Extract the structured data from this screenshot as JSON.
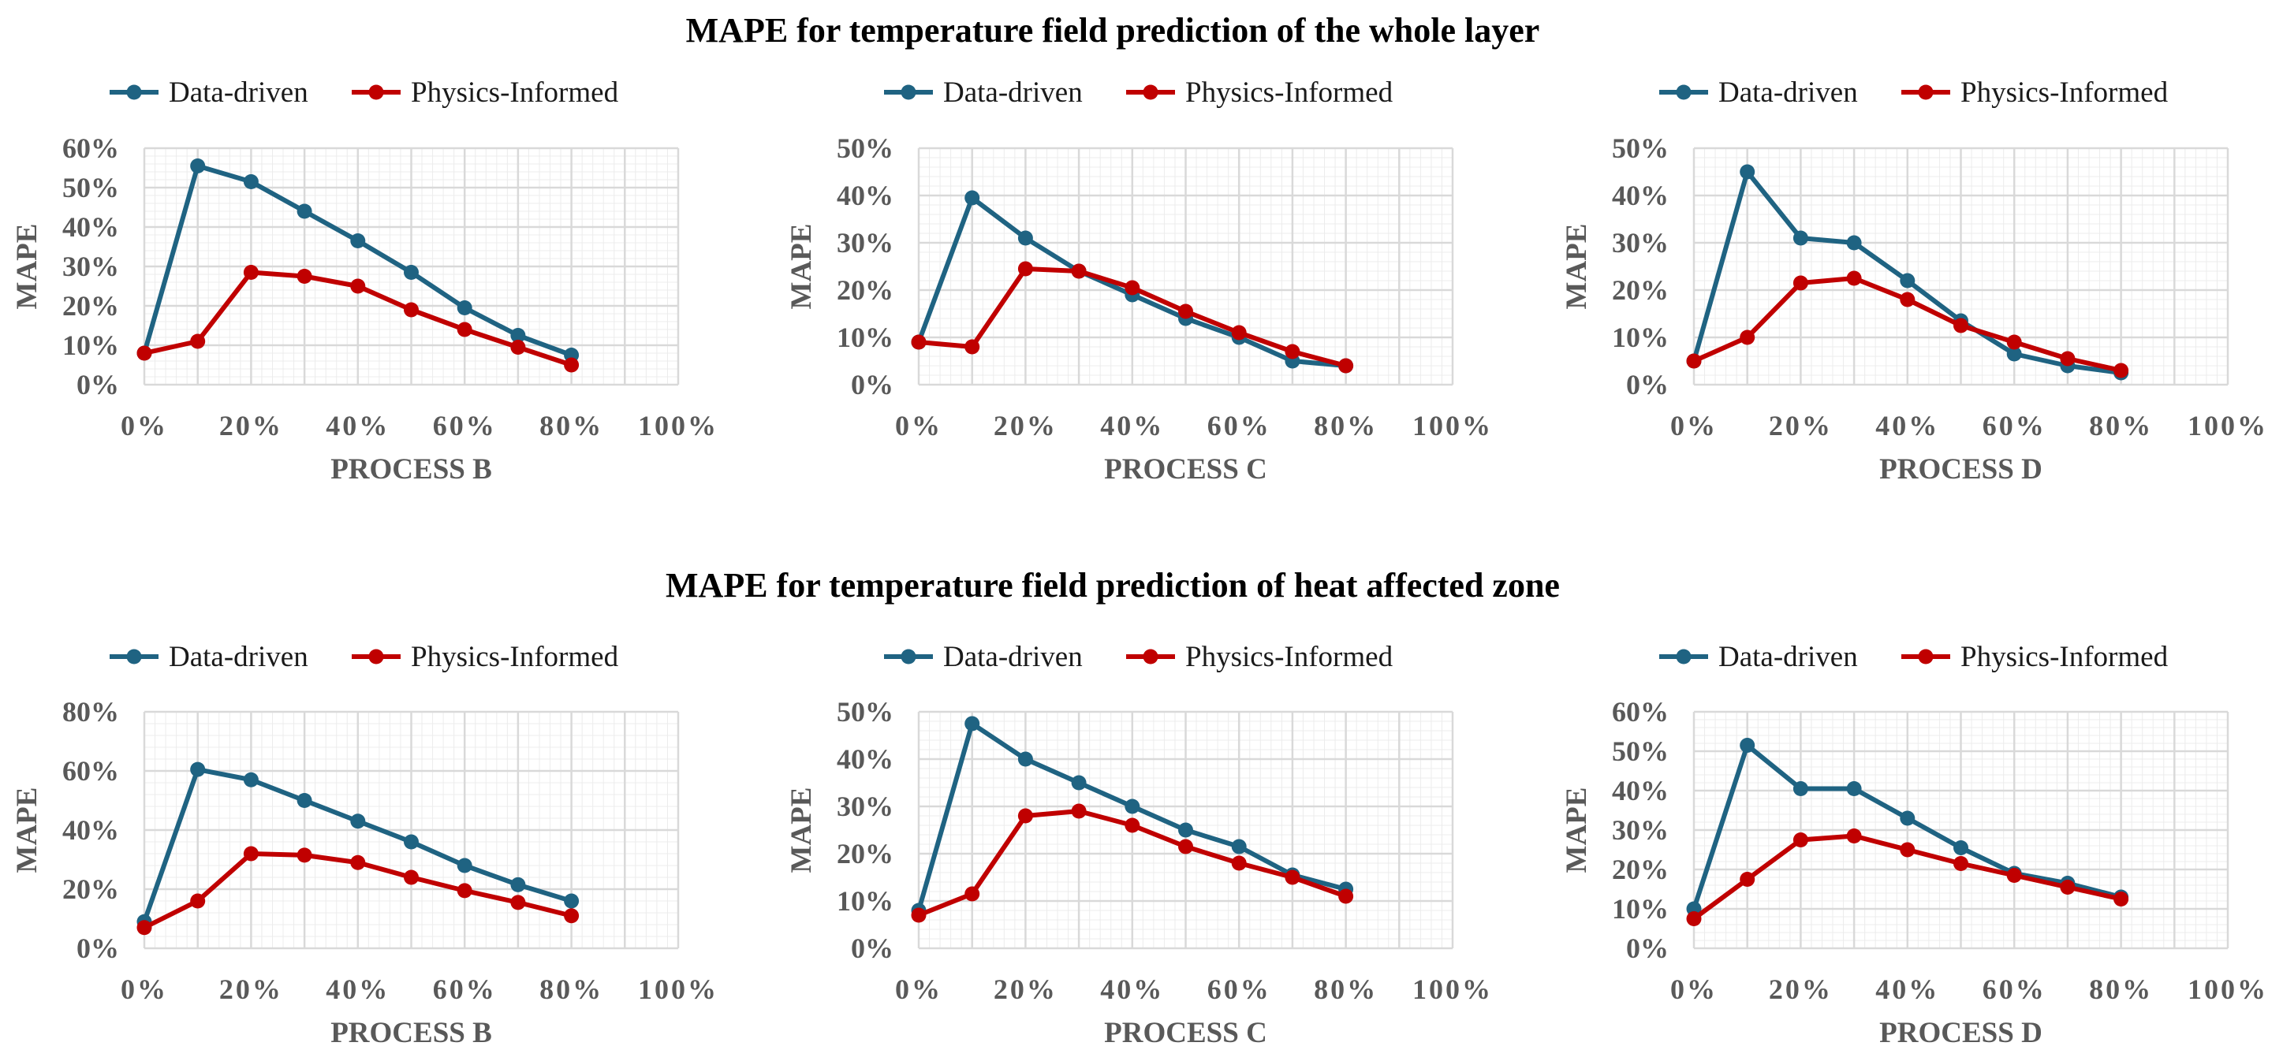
{
  "section_titles": [
    "MAPE for temperature field prediction of the whole layer",
    "MAPE for temperature field prediction of heat affected zone"
  ],
  "colors": {
    "data_driven": "#1f6382",
    "physics_informed": "#c00000",
    "grid_major": "#d9d9d9",
    "grid_minor": "#ececec",
    "tick_text": "#595959"
  },
  "chart_data": [
    {
      "type": "line",
      "section": 0,
      "xlabel": "PROCESS B",
      "ylabel": "MAPE",
      "xlim": [
        0,
        100
      ],
      "ylim": [
        0,
        60
      ],
      "ystep": 10,
      "x_ticks": [
        "0%",
        "20%",
        "40%",
        "60%",
        "80%",
        "100%"
      ],
      "y_ticks": [
        "0%",
        "10%",
        "20%",
        "30%",
        "40%",
        "50%",
        "60%"
      ],
      "x": [
        0,
        10,
        20,
        30,
        40,
        50,
        60,
        70,
        80
      ],
      "series": [
        {
          "name": "Data-driven",
          "values": [
            8,
            55.5,
            51.5,
            44,
            36.5,
            28.5,
            19.5,
            12.5,
            7.5
          ]
        },
        {
          "name": "Physics-Informed",
          "values": [
            8,
            11,
            28.5,
            27.5,
            25,
            19,
            14,
            9.5,
            5
          ]
        }
      ]
    },
    {
      "type": "line",
      "section": 0,
      "xlabel": "PROCESS C",
      "ylabel": "MAPE",
      "xlim": [
        0,
        100
      ],
      "ylim": [
        0,
        50
      ],
      "ystep": 10,
      "x_ticks": [
        "0%",
        "20%",
        "40%",
        "60%",
        "80%",
        "100%"
      ],
      "y_ticks": [
        "0%",
        "10%",
        "20%",
        "30%",
        "40%",
        "50%"
      ],
      "x": [
        0,
        10,
        20,
        30,
        40,
        50,
        60,
        70,
        80
      ],
      "series": [
        {
          "name": "Data-driven",
          "values": [
            9,
            39.5,
            31,
            24,
            19,
            14,
            10,
            5,
            4
          ]
        },
        {
          "name": "Physics-Informed",
          "values": [
            9,
            8,
            24.5,
            24,
            20.5,
            15.5,
            11,
            7,
            4
          ]
        }
      ]
    },
    {
      "type": "line",
      "section": 0,
      "xlabel": "PROCESS D",
      "ylabel": "MAPE",
      "xlim": [
        0,
        100
      ],
      "ylim": [
        0,
        50
      ],
      "ystep": 10,
      "x_ticks": [
        "0%",
        "20%",
        "40%",
        "60%",
        "80%",
        "100%"
      ],
      "y_ticks": [
        "0%",
        "10%",
        "20%",
        "30%",
        "40%",
        "50%"
      ],
      "x": [
        0,
        10,
        20,
        30,
        40,
        50,
        60,
        70,
        80
      ],
      "series": [
        {
          "name": "Data-driven",
          "values": [
            5,
            45,
            31,
            30,
            22,
            13.5,
            6.5,
            4,
            2.5
          ]
        },
        {
          "name": "Physics-Informed",
          "values": [
            5,
            10,
            21.5,
            22.5,
            18,
            12.5,
            9,
            5.5,
            3
          ]
        }
      ]
    },
    {
      "type": "line",
      "section": 1,
      "xlabel": "PROCESS B",
      "ylabel": "MAPE",
      "xlim": [
        0,
        100
      ],
      "ylim": [
        0,
        80
      ],
      "ystep": 20,
      "x_ticks": [
        "0%",
        "20%",
        "40%",
        "60%",
        "80%",
        "100%"
      ],
      "y_ticks": [
        "0%",
        "20%",
        "40%",
        "60%",
        "80%"
      ],
      "x": [
        0,
        10,
        20,
        30,
        40,
        50,
        60,
        70,
        80
      ],
      "series": [
        {
          "name": "Data-driven",
          "values": [
            9,
            60.5,
            57,
            50,
            43,
            36,
            28,
            21.5,
            16
          ]
        },
        {
          "name": "Physics-Informed",
          "values": [
            7,
            16,
            32,
            31.5,
            29,
            24,
            19.5,
            15.5,
            11
          ]
        }
      ]
    },
    {
      "type": "line",
      "section": 1,
      "xlabel": "PROCESS C",
      "ylabel": "MAPE",
      "xlim": [
        0,
        100
      ],
      "ylim": [
        0,
        50
      ],
      "ystep": 10,
      "x_ticks": [
        "0%",
        "20%",
        "40%",
        "60%",
        "80%",
        "100%"
      ],
      "y_ticks": [
        "0%",
        "10%",
        "20%",
        "30%",
        "40%",
        "50%"
      ],
      "x": [
        0,
        10,
        20,
        30,
        40,
        50,
        60,
        70,
        80
      ],
      "series": [
        {
          "name": "Data-driven",
          "values": [
            8,
            47.5,
            40,
            35,
            30,
            25,
            21.5,
            15.5,
            12.5
          ]
        },
        {
          "name": "Physics-Informed",
          "values": [
            7,
            11.5,
            28,
            29,
            26,
            21.5,
            18,
            15,
            11
          ]
        }
      ]
    },
    {
      "type": "line",
      "section": 1,
      "xlabel": "PROCESS D",
      "ylabel": "MAPE",
      "xlim": [
        0,
        100
      ],
      "ylim": [
        0,
        60
      ],
      "ystep": 10,
      "x_ticks": [
        "0%",
        "20%",
        "40%",
        "60%",
        "80%",
        "100%"
      ],
      "y_ticks": [
        "0%",
        "10%",
        "20%",
        "30%",
        "40%",
        "50%",
        "60%"
      ],
      "x": [
        0,
        10,
        20,
        30,
        40,
        50,
        60,
        70,
        80
      ],
      "series": [
        {
          "name": "Data-driven",
          "values": [
            10,
            51.5,
            40.5,
            40.5,
            33,
            25.5,
            19,
            16.5,
            13
          ]
        },
        {
          "name": "Physics-Informed",
          "values": [
            7.5,
            17.5,
            27.5,
            28.5,
            25,
            21.5,
            18.5,
            15.5,
            12.5
          ]
        }
      ]
    }
  ]
}
